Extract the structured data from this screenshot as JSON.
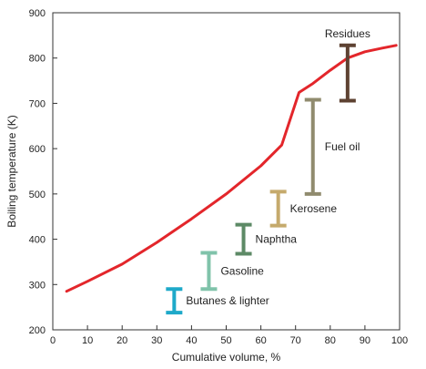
{
  "chart_data": {
    "type": "line",
    "title": "",
    "xlabel": "Cumulative volume, %",
    "ylabel": "Boiling temperature (K)",
    "xlim": [
      0,
      100
    ],
    "ylim": [
      200,
      900
    ],
    "xticks": [
      0,
      10,
      20,
      30,
      40,
      50,
      60,
      70,
      80,
      90,
      100
    ],
    "yticks": [
      200,
      300,
      400,
      500,
      600,
      700,
      800,
      900
    ],
    "grid": false,
    "legend": "none",
    "series": [
      {
        "color": "#e3262b",
        "x": [
          4,
          10,
          20,
          30,
          40,
          50,
          60,
          66,
          71,
          75,
          80,
          85,
          90,
          95,
          99
        ],
        "y": [
          285,
          307,
          345,
          393,
          445,
          500,
          562,
          608,
          724,
          744,
          773,
          800,
          814,
          822,
          828
        ]
      }
    ],
    "fractions": [
      {
        "label": "Butanes & lighter",
        "x": 35,
        "y_min": 238,
        "y_max": 290,
        "color": "#1ea9c9"
      },
      {
        "label": "Gasoline",
        "x": 45,
        "y_min": 290,
        "y_max": 370,
        "color": "#80c3aa"
      },
      {
        "label": "Naphtha",
        "x": 55,
        "y_min": 368,
        "y_max": 432,
        "color": "#5d8a66"
      },
      {
        "label": "Kerosene",
        "x": 65,
        "y_min": 430,
        "y_max": 505,
        "color": "#c5aa6c"
      },
      {
        "label": "Fuel oil",
        "x": 75,
        "y_min": 500,
        "y_max": 708,
        "color": "#908b6e"
      },
      {
        "label": "Residues",
        "x": 85,
        "y_min": 706,
        "y_max": 828,
        "color": "#5e4232"
      }
    ]
  }
}
